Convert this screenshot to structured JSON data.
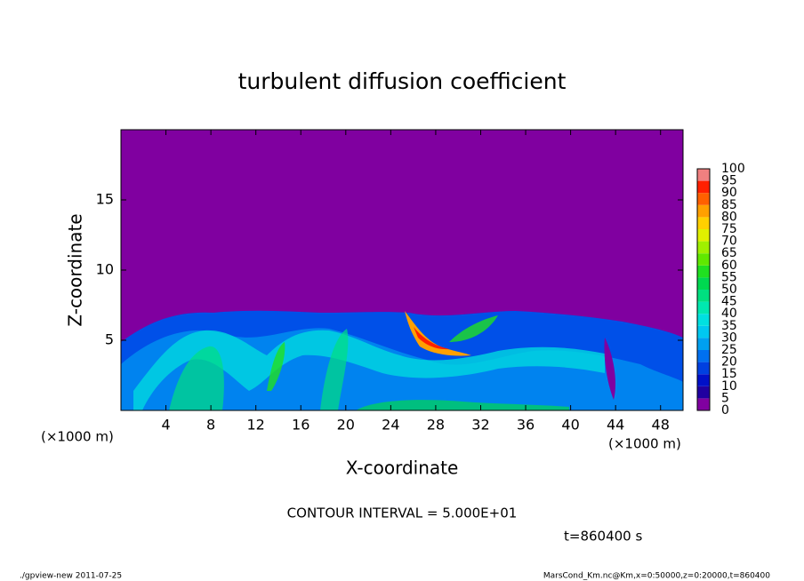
{
  "chart_data": {
    "type": "heatmap",
    "title": "turbulent diffusion coefficient",
    "x_label": "X-coordinate",
    "y_label": "Z-coordinate",
    "x_unit": "(×1000 m)",
    "y_unit": "(×1000 m)",
    "xlim": [
      0,
      50
    ],
    "xticks": [
      4,
      8,
      12,
      16,
      20,
      24,
      28,
      32,
      36,
      40,
      44,
      48
    ],
    "ylim": [
      0,
      20
    ],
    "yticks": [
      5,
      10,
      15
    ],
    "colorbar": {
      "levels": [
        0,
        5,
        10,
        15,
        20,
        25,
        30,
        35,
        40,
        45,
        50,
        55,
        60,
        65,
        70,
        75,
        80,
        85,
        90,
        95,
        100
      ],
      "colors": [
        "#8000a0",
        "#2000a0",
        "#0010c8",
        "#0040e0",
        "#0070f0",
        "#00a0f0",
        "#00c8f0",
        "#00e0e0",
        "#00e8b0",
        "#00e080",
        "#00d850",
        "#20e020",
        "#60e800",
        "#a0f000",
        "#e0f000",
        "#ffd000",
        "#ffa000",
        "#ff6000",
        "#ff2000",
        "#f08080"
      ]
    },
    "contour_note": "CONTOUR INTERVAL = 5.000E+01",
    "time_label": "t=860400 s",
    "footer_left": "./gpview-new   2011-07-25",
    "footer_right": "MarsCond_Km.nc@Km,x=0:50000,z=0:20000,t=860400"
  }
}
